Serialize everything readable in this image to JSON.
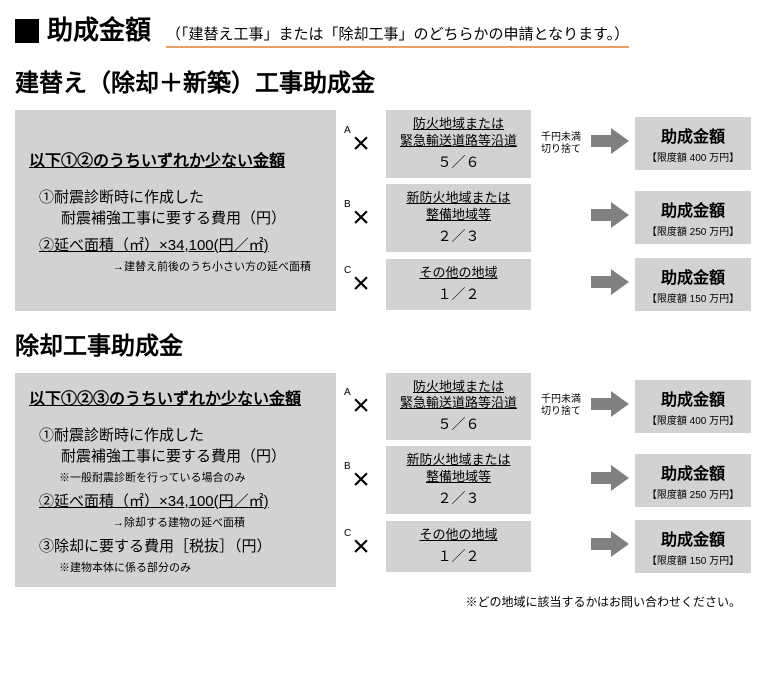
{
  "header": {
    "title": "助成金額",
    "note": "（「建替え工事」または「除却工事」のどちらかの申請となります。）"
  },
  "section1": {
    "title": "建替え（除却＋新築）工事助成金",
    "leftHeader": "以下①②のうちいずれか少ない金額",
    "item1_l1": "①耐震診断時に作成した",
    "item1_l2": "耐震補強工事に要する費用（円）",
    "item2": "②延べ面積（㎡）×34,100(円／㎡)",
    "item2_note": "→建替え前後のうち小さい方の延べ面積",
    "rows": [
      {
        "label": "A",
        "regionL1": "防火地域または",
        "regionL2": "緊急輸送道路等沿道",
        "frac": "５／６",
        "round": "千円未満切り捨て",
        "result": "助成金額",
        "limit": "【限度額 400 万円】"
      },
      {
        "label": "B",
        "regionL1": "新防火地域または",
        "regionL2": "整備地域等",
        "frac": "２／３",
        "round": "",
        "result": "助成金額",
        "limit": "【限度額 250 万円】"
      },
      {
        "label": "C",
        "regionL1": "その他の地域",
        "regionL2": "",
        "frac": "１／２",
        "round": "",
        "result": "助成金額",
        "limit": "【限度額 150 万円】"
      }
    ]
  },
  "section2": {
    "title": "除却工事助成金",
    "leftHeader": "以下①②③のうちいずれか少ない金額",
    "item1_l1": "①耐震診断時に作成した",
    "item1_l2": "耐震補強工事に要する費用（円）",
    "item1_note": "※一般耐震診断を行っている場合のみ",
    "item2": "②延べ面積（㎡）×34,100(円／㎡)",
    "item2_note": "→除却する建物の延べ面積",
    "item3": "③除却に要する費用［税抜］（円）",
    "item3_note": "※建物本体に係る部分のみ",
    "rows": [
      {
        "label": "A",
        "regionL1": "防火地域または",
        "regionL2": "緊急輸送道路等沿道",
        "frac": "５／６",
        "round": "千円未満切り捨て",
        "result": "助成金額",
        "limit": "【限度額 400 万円】"
      },
      {
        "label": "B",
        "regionL1": "新防火地域または",
        "regionL2": "整備地域等",
        "frac": "２／３",
        "round": "",
        "result": "助成金額",
        "limit": "【限度額 250 万円】"
      },
      {
        "label": "C",
        "regionL1": "その他の地域",
        "regionL2": "",
        "frac": "１／２",
        "round": "",
        "result": "助成金額",
        "limit": "【限度額 150 万円】"
      }
    ],
    "footnote": "※どの地域に該当するかはお問い合わせください。"
  },
  "style": {
    "boxBg": "#d2d2d2",
    "underlineColor": "#e8a060",
    "arrowFill": "#808080"
  }
}
